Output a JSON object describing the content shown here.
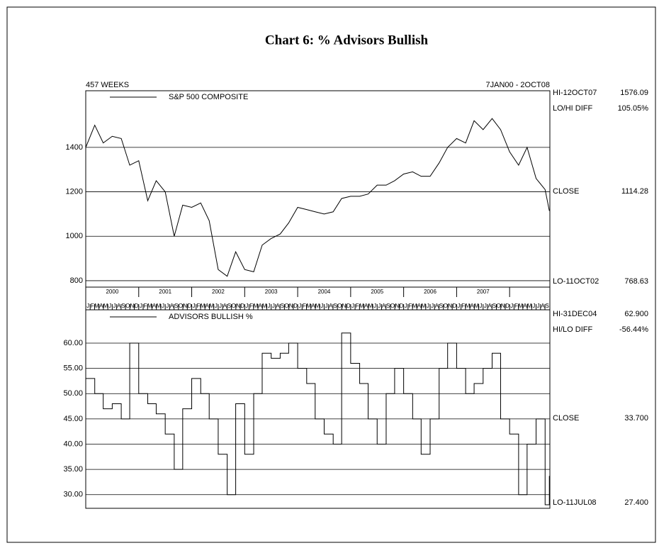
{
  "header": {
    "title": "Chart 6: % Advisors Bullish",
    "left": "457 WEEKS",
    "right": "7JAN00 - 2OCT08"
  },
  "xaxis": {
    "xlim": [
      2000.0,
      2008.76
    ],
    "xticks": [
      {
        "value": 2000.5,
        "label": "2000"
      },
      {
        "value": 2001.5,
        "label": "2001"
      },
      {
        "value": 2002.5,
        "label": "2002"
      },
      {
        "value": 2003.5,
        "label": "2003"
      },
      {
        "value": 2004.5,
        "label": "2004"
      },
      {
        "value": 2005.5,
        "label": "2005"
      },
      {
        "value": 2006.5,
        "label": "2006"
      },
      {
        "value": 2007.5,
        "label": "2007"
      }
    ],
    "month_labels": [
      "J",
      "F",
      "M",
      "A",
      "M",
      "J",
      "J",
      "A",
      "S",
      "O",
      "N",
      "D"
    ]
  },
  "chart_data": [
    {
      "type": "line",
      "step": false,
      "grid": true,
      "ylim": [
        771,
        1655
      ],
      "yticks": [
        800,
        1000,
        1200,
        1400
      ],
      "series": [
        {
          "name": "S&P 500 COMPOSITE",
          "color": "#000000",
          "x": [
            2000.0,
            2000.17,
            2000.33,
            2000.5,
            2000.67,
            2000.83,
            2001.0,
            2001.17,
            2001.33,
            2001.5,
            2001.67,
            2001.83,
            2002.0,
            2002.17,
            2002.33,
            2002.5,
            2002.67,
            2002.83,
            2003.0,
            2003.17,
            2003.33,
            2003.5,
            2003.67,
            2003.83,
            2004.0,
            2004.17,
            2004.33,
            2004.5,
            2004.67,
            2004.83,
            2005.0,
            2005.17,
            2005.33,
            2005.5,
            2005.67,
            2005.83,
            2006.0,
            2006.17,
            2006.33,
            2006.5,
            2006.67,
            2006.83,
            2007.0,
            2007.17,
            2007.33,
            2007.5,
            2007.67,
            2007.83,
            2008.0,
            2008.17,
            2008.33,
            2008.5,
            2008.67,
            2008.75
          ],
          "values": [
            1400,
            1500,
            1420,
            1450,
            1440,
            1320,
            1340,
            1160,
            1250,
            1200,
            1000,
            1140,
            1130,
            1150,
            1070,
            850,
            820,
            930,
            850,
            840,
            960,
            990,
            1010,
            1060,
            1130,
            1120,
            1110,
            1100,
            1110,
            1170,
            1180,
            1180,
            1190,
            1230,
            1230,
            1250,
            1280,
            1290,
            1270,
            1270,
            1330,
            1400,
            1440,
            1420,
            1520,
            1480,
            1530,
            1480,
            1380,
            1320,
            1400,
            1260,
            1210,
            1114.28
          ]
        }
      ],
      "right_labels": [
        {
          "text": "HI-12OCT07",
          "value": "1576.09"
        },
        {
          "text": "LO/HI DIFF",
          "value": "105.05%"
        },
        {
          "text": "CLOSE",
          "value": "1114.28"
        },
        {
          "text": "LO-11OCT02",
          "value": "768.63"
        }
      ]
    },
    {
      "type": "line",
      "step": true,
      "grid": true,
      "ylim": [
        27.3,
        66.6
      ],
      "yticks": [
        {
          "value": 30,
          "label": "30.00"
        },
        {
          "value": 35,
          "label": "35.00"
        },
        {
          "value": 40,
          "label": "40.00"
        },
        {
          "value": 45,
          "label": "45.00"
        },
        {
          "value": 50,
          "label": "50.00"
        },
        {
          "value": 55,
          "label": "55.00"
        },
        {
          "value": 60,
          "label": "60.00"
        }
      ],
      "series": [
        {
          "name": "ADVISORS BULLISH %",
          "color": "#000000",
          "x": [
            2000.0,
            2000.17,
            2000.33,
            2000.5,
            2000.67,
            2000.83,
            2001.0,
            2001.17,
            2001.33,
            2001.5,
            2001.67,
            2001.83,
            2002.0,
            2002.17,
            2002.33,
            2002.5,
            2002.67,
            2002.83,
            2003.0,
            2003.17,
            2003.33,
            2003.5,
            2003.67,
            2003.83,
            2004.0,
            2004.17,
            2004.33,
            2004.5,
            2004.67,
            2004.83,
            2005.0,
            2005.17,
            2005.33,
            2005.5,
            2005.67,
            2005.83,
            2006.0,
            2006.17,
            2006.33,
            2006.5,
            2006.67,
            2006.83,
            2007.0,
            2007.17,
            2007.33,
            2007.5,
            2007.67,
            2007.83,
            2008.0,
            2008.17,
            2008.33,
            2008.5,
            2008.67,
            2008.75
          ],
          "values": [
            53,
            50,
            47,
            48,
            45,
            60,
            50,
            48,
            46,
            42,
            35,
            47,
            53,
            50,
            45,
            38,
            30,
            48,
            38,
            50,
            58,
            57,
            58,
            60,
            55,
            52,
            45,
            42,
            40,
            62,
            56,
            52,
            45,
            40,
            50,
            55,
            50,
            45,
            38,
            45,
            55,
            60,
            55,
            50,
            52,
            55,
            58,
            45,
            42,
            30,
            40,
            45,
            28,
            33.7
          ]
        }
      ],
      "right_labels": [
        {
          "text": "HI-31DEC04",
          "value": "62.900"
        },
        {
          "text": "HI/LO DIFF",
          "value": "-56.44%"
        },
        {
          "text": "CLOSE",
          "value": "33.700"
        },
        {
          "text": "LO-11JUL08",
          "value": "27.400"
        }
      ]
    }
  ]
}
